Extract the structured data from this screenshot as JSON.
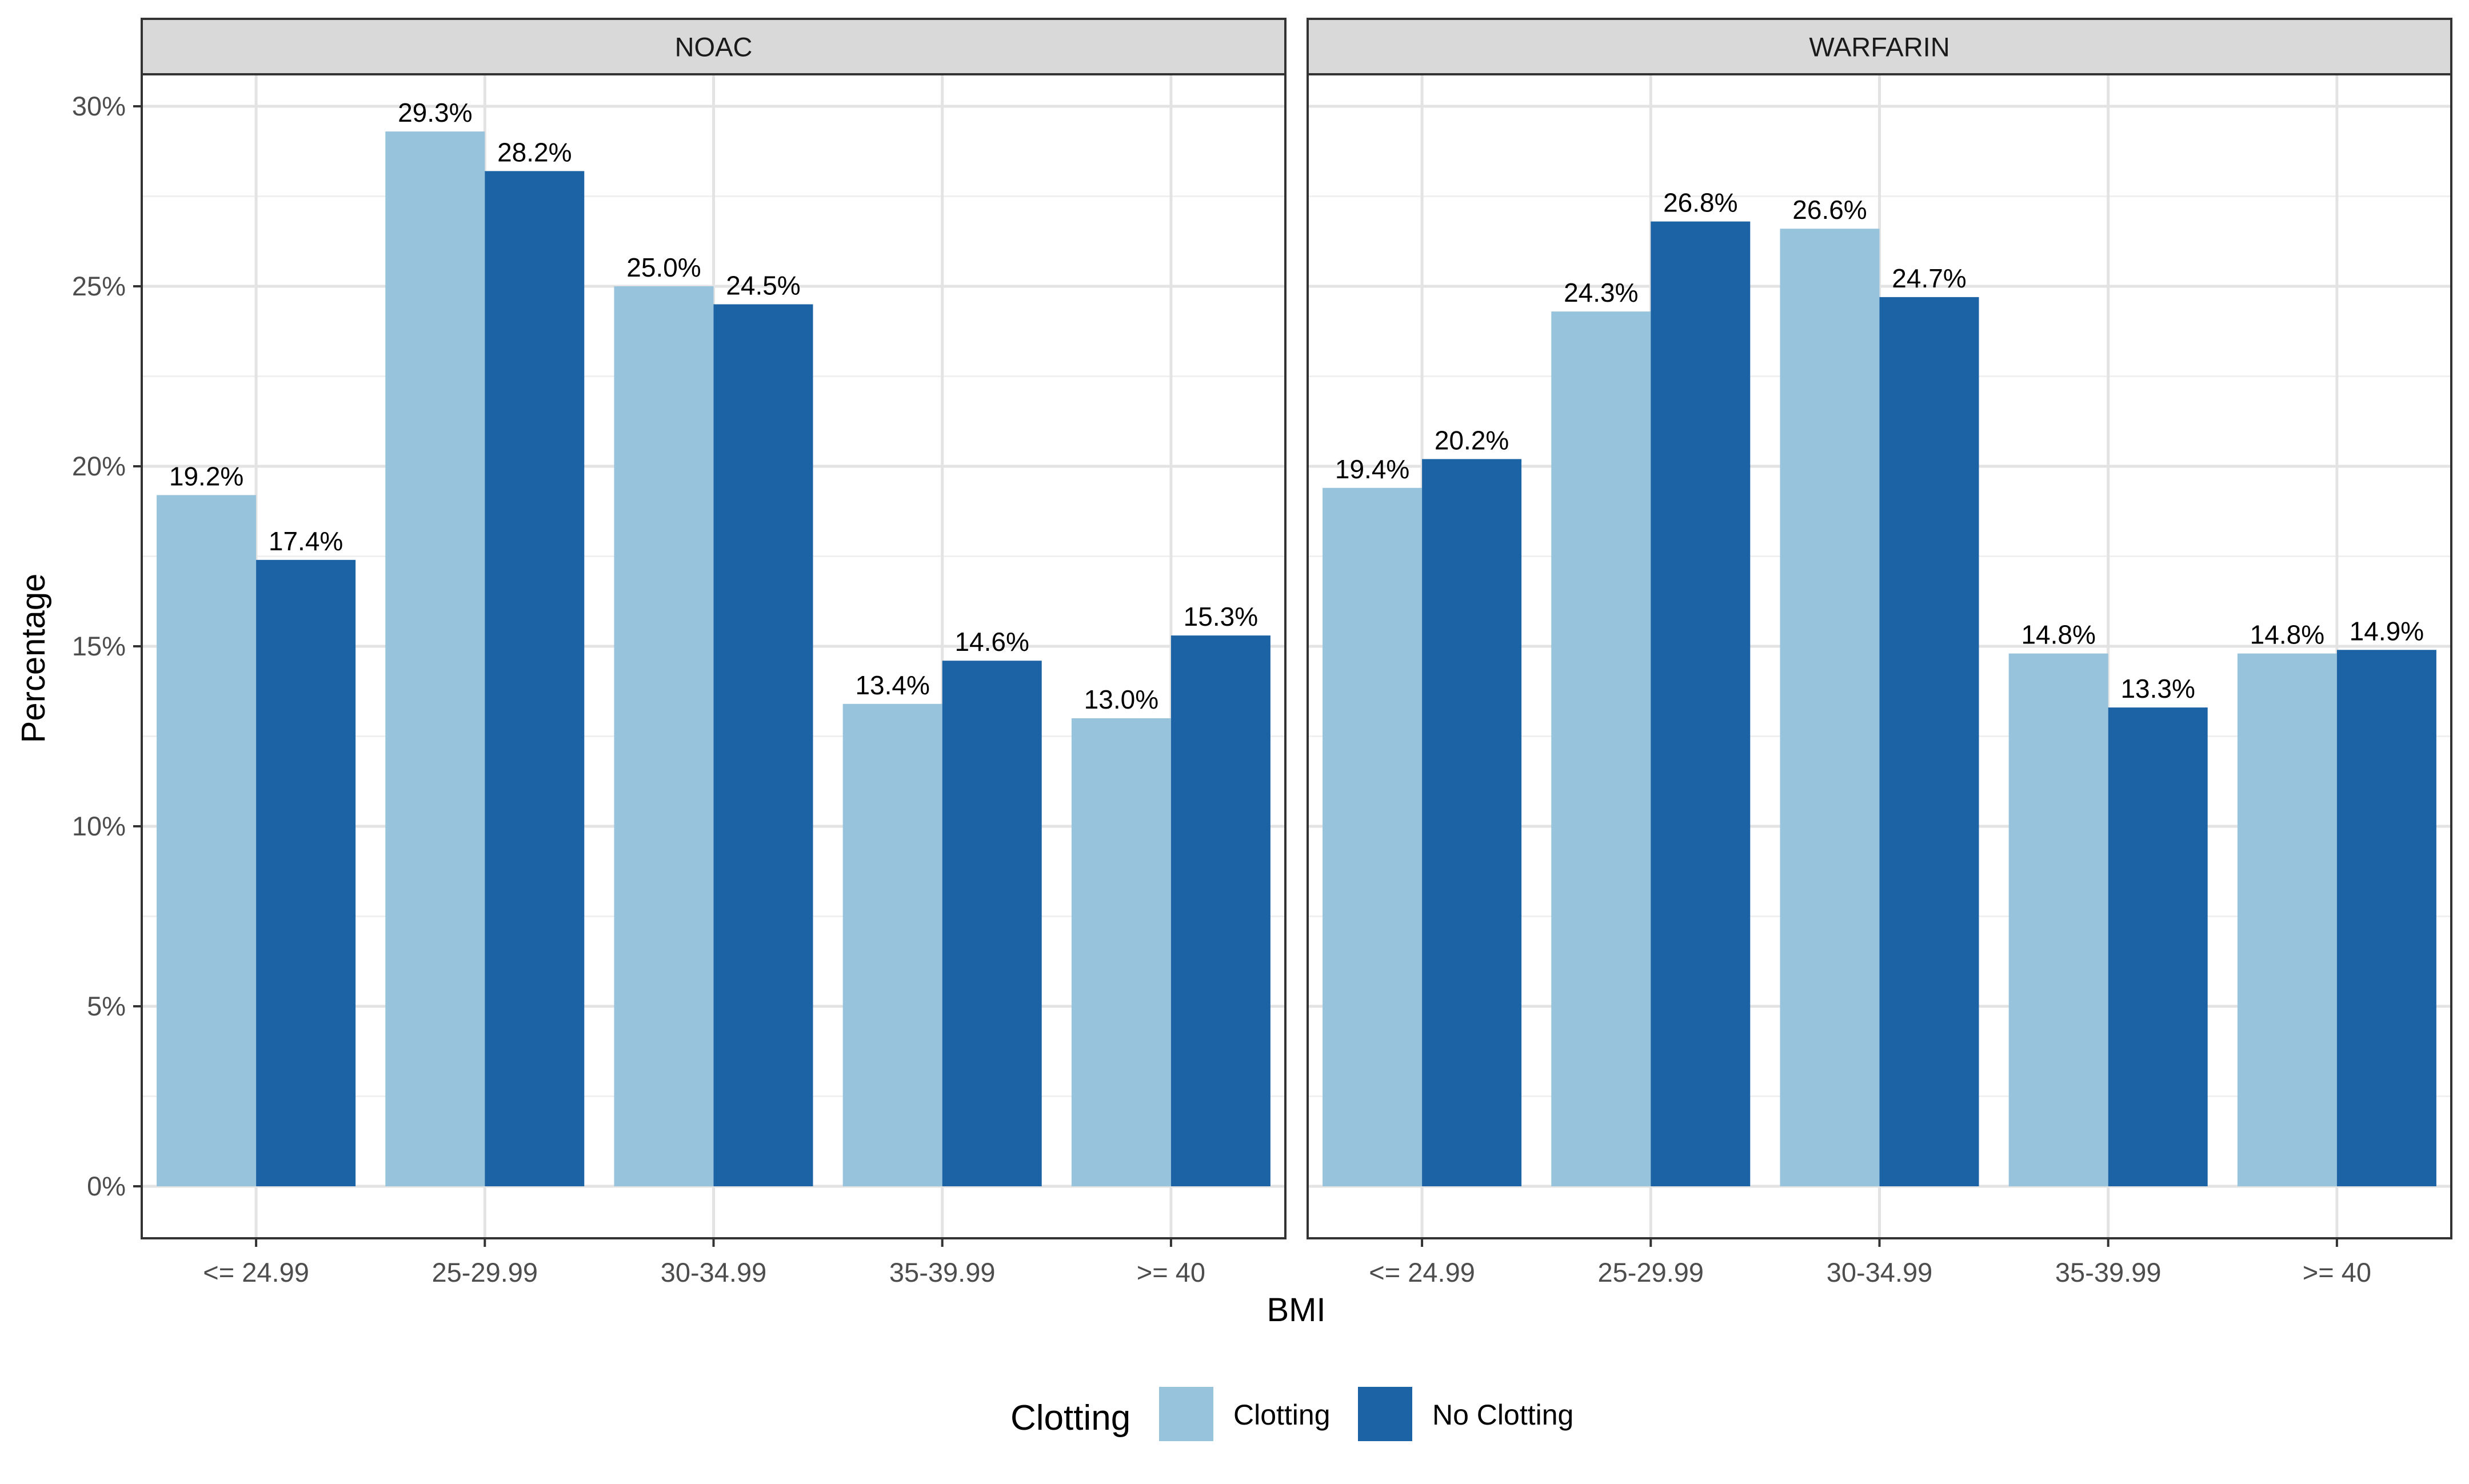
{
  "chart_data": {
    "type": "bar",
    "facets": [
      "NOAC",
      "WARFARIN"
    ],
    "categories": [
      "<= 24.99",
      "25-29.99",
      "30-34.99",
      "35-39.99",
      ">= 40"
    ],
    "series": [
      {
        "name": "Clotting",
        "color": "#97c3dc"
      },
      {
        "name": "No Clotting",
        "color": "#1c63a6"
      }
    ],
    "values": {
      "NOAC": {
        "Clotting": [
          19.2,
          29.3,
          25.0,
          13.4,
          13.0
        ],
        "No Clotting": [
          17.4,
          28.2,
          24.5,
          14.6,
          15.3
        ]
      },
      "WARFARIN": {
        "Clotting": [
          19.4,
          24.3,
          26.6,
          14.8,
          14.8
        ],
        "No Clotting": [
          20.2,
          26.8,
          24.7,
          13.3,
          14.9
        ]
      }
    },
    "data_labels": {
      "NOAC": {
        "Clotting": [
          "19.2%",
          "29.3%",
          "25.0%",
          "13.4%",
          "13.0%"
        ],
        "No Clotting": [
          "17.4%",
          "28.2%",
          "24.5%",
          "14.6%",
          "15.3%"
        ]
      },
      "WARFARIN": {
        "Clotting": [
          "19.4%",
          "24.3%",
          "26.6%",
          "14.8%",
          "14.8%"
        ],
        "No Clotting": [
          "20.2%",
          "26.8%",
          "24.7%",
          "13.3%",
          "14.9%"
        ]
      }
    },
    "xlabel": "BMI",
    "ylabel": "Percentage",
    "ylim": [
      0,
      31.5
    ],
    "yticks": [
      0,
      5,
      10,
      15,
      20,
      25,
      30
    ],
    "ytick_labels": [
      "0%",
      "5%",
      "10%",
      "15%",
      "20%",
      "25%",
      "30%"
    ],
    "legend": {
      "title": "Clotting",
      "placement": "bottom"
    },
    "grid": true
  }
}
